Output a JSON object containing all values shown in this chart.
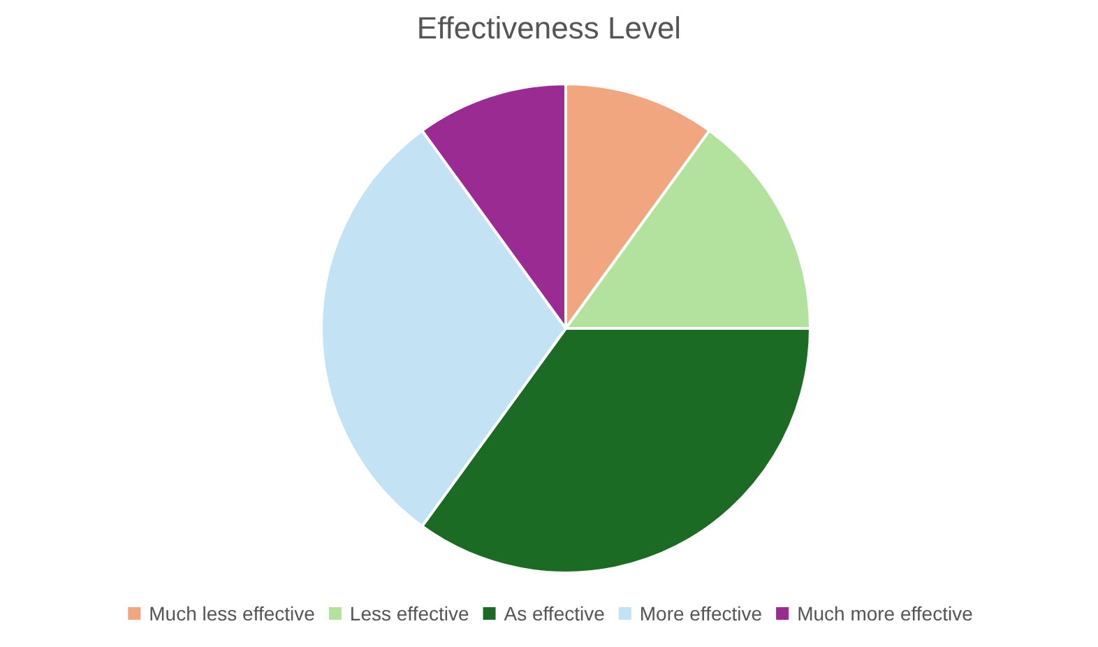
{
  "chart_data": {
    "type": "pie",
    "title": "Effectiveness Level",
    "categories": [
      "Much less effective",
      "Less effective",
      "As effective",
      "More effective",
      "Much more effective"
    ],
    "values": [
      10,
      15,
      35,
      30,
      10
    ],
    "colors": [
      "#f2a67f",
      "#b3e29f",
      "#1b6b24",
      "#c3e2f3",
      "#9a2b92"
    ],
    "legend": "bottom"
  }
}
